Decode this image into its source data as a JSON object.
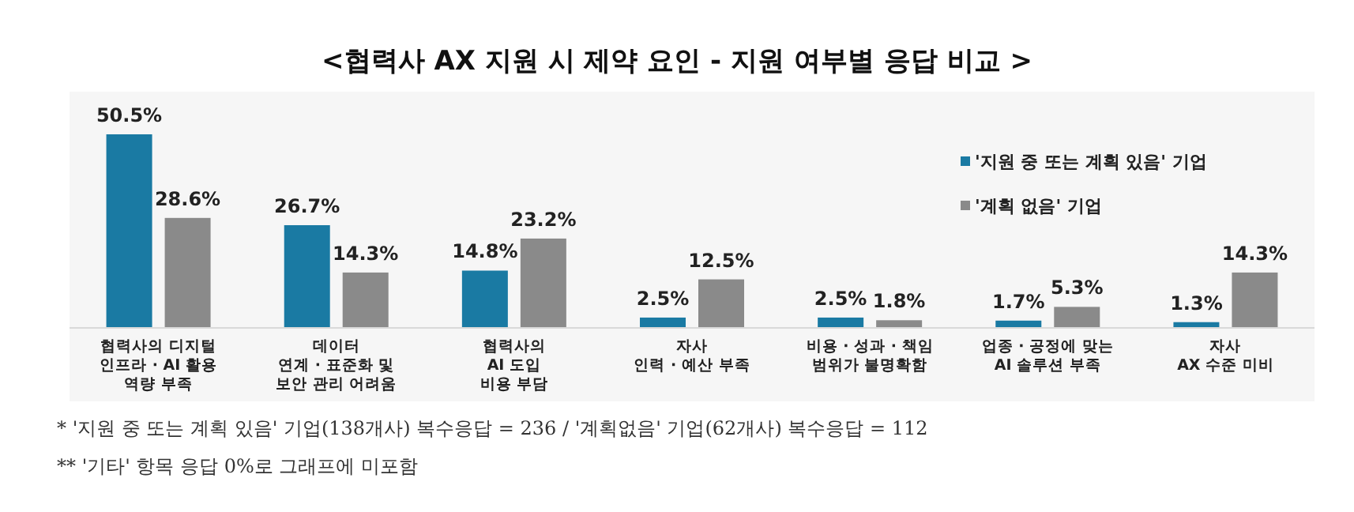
{
  "chart_data": {
    "type": "bar",
    "title": "<협력사 AX 지원 시 제약 요인 - 지원 여부별 응답 비교 >",
    "categories": [
      "협력사의 디지털\n인프라 · AI 활용\n역량 부족",
      "데이터\n연계 · 표준화 및\n보안 관리 어려움",
      "협력사의\nAI 도입\n비용 부담",
      "자사\n인력 · 예산 부족",
      "비용 · 성과 · 책임\n범위가 불명확함",
      "업종 · 공정에 맞는\nAI 솔루션 부족",
      "자사\nAX 수준 미비"
    ],
    "series": [
      {
        "name": "'지원 중 또는 계획 있음' 기업",
        "color": "#1a7aa3",
        "values": [
          50.5,
          26.7,
          14.8,
          2.5,
          2.5,
          1.7,
          1.3
        ],
        "value_labels": [
          "50.5%",
          "26.7%",
          "14.8%",
          "2.5%",
          "2.5%",
          "1.7%",
          "1.3%"
        ]
      },
      {
        "name": "'계획 없음' 기업",
        "color": "#8a8a8a",
        "values": [
          28.6,
          14.3,
          23.2,
          12.5,
          1.8,
          5.3,
          14.3
        ],
        "value_labels": [
          "28.6%",
          "14.3%",
          "23.2%",
          "12.5%",
          "1.8%",
          "5.3%",
          "14.3%"
        ]
      }
    ],
    "legend": "top right",
    "annotations": [
      "* '지원 중 또는 계획 있음' 기업(138개사) 복수응답 = 236 / '계획없음' 기업(62개사) 복수응답 = 112",
      "** '기타' 항목 응답 0%로 그래프에 미포함"
    ]
  }
}
